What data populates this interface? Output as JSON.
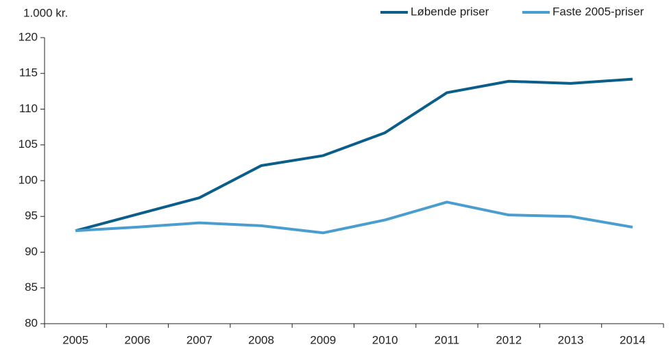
{
  "chart_data": {
    "type": "line",
    "y_label": "1.000 kr.",
    "categories": [
      "2005",
      "2006",
      "2007",
      "2008",
      "2009",
      "2010",
      "2011",
      "2012",
      "2013",
      "2014"
    ],
    "series": [
      {
        "name": "Løbende priser",
        "color": "#0b5e8a",
        "values": [
          93.0,
          95.3,
          97.6,
          102.1,
          103.5,
          106.7,
          112.3,
          113.9,
          113.6,
          114.2
        ]
      },
      {
        "name": "Faste 2005-priser",
        "color": "#4a9dcf",
        "values": [
          93.0,
          93.5,
          94.1,
          93.7,
          92.7,
          94.5,
          97.0,
          95.2,
          95.0,
          93.5
        ]
      }
    ],
    "ylim": [
      80,
      120
    ],
    "yticks": [
      80,
      85,
      90,
      95,
      100,
      105,
      110,
      115,
      120
    ],
    "grid": false,
    "legend": "top-right"
  }
}
